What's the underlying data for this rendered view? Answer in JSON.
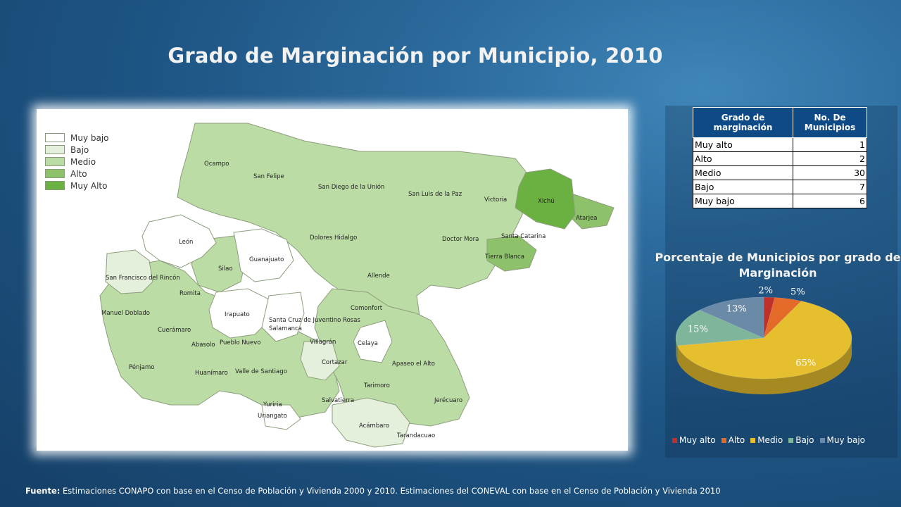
{
  "title": "Grado de Marginación por Municipio, 2010",
  "map": {
    "legend": [
      {
        "label": "Muy bajo",
        "color": "#ffffff"
      },
      {
        "label": "Bajo",
        "color": "#e4efdc"
      },
      {
        "label": "Medio",
        "color": "#bcdca6"
      },
      {
        "label": "Alto",
        "color": "#8ec26a"
      },
      {
        "label": "Muy Alto",
        "color": "#6bb141"
      }
    ],
    "municipalities": [
      "Ocampo",
      "San Felipe",
      "San Diego de la Unión",
      "San Luis de la Paz",
      "Victoria",
      "Xichú",
      "Atarjea",
      "León",
      "Dolores Hidalgo",
      "Doctor Mora",
      "Santa Catarina",
      "Tierra Blanca",
      "Guanajuato",
      "Silao",
      "San Francisco del Rincón",
      "Allende",
      "Romita",
      "Manuel Doblado",
      "Irapuato",
      "Santa Cruz de Juventino Rosas",
      "Comonfort",
      "Salamanca",
      "Cuerámaro",
      "Abasolo",
      "Pueblo Nuevo",
      "Villagrán",
      "Celaya",
      "Cortazar",
      "Pénjamo",
      "Huanímaro",
      "Valle de Santiago",
      "Apaseo el Alto",
      "Tarimoro",
      "Jerécuaro",
      "Salvatierra",
      "Yuriria",
      "Uriangato",
      "Acámbaro",
      "Tarandacuao"
    ]
  },
  "table": {
    "headers": [
      "Grado de marginación",
      "No. De Municipios"
    ],
    "rows": [
      {
        "label": "Muy alto",
        "value": "1"
      },
      {
        "label": "Alto",
        "value": "2"
      },
      {
        "label": "Medio",
        "value": "30"
      },
      {
        "label": "Bajo",
        "value": "7"
      },
      {
        "label": "Muy bajo",
        "value": "6"
      }
    ]
  },
  "chart_data": {
    "type": "pie",
    "title": "Porcentaje de Municipios por grado de Marginación",
    "categories": [
      "Muy alto",
      "Alto",
      "Medio",
      "Bajo",
      "Muy bajo"
    ],
    "values": [
      2,
      5,
      65,
      15,
      13
    ],
    "labels": [
      "2%",
      "5%",
      "65%",
      "15%",
      "13%"
    ],
    "colors": [
      "#c0302a",
      "#e46a2a",
      "#e6bf2e",
      "#7fb59a",
      "#6a8aa8"
    ],
    "legend_position": "bottom"
  },
  "source": {
    "prefix": "Fuente:",
    "text": "Estimaciones CONAPO con base en el Censo de Población y Vivienda 2000 y 2010. Estimaciones del CONEVAL con base en el  Censo de Población y Vivienda 2010"
  }
}
